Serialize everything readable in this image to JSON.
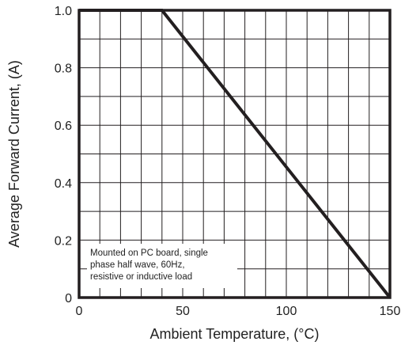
{
  "chart_data": {
    "type": "line",
    "title": "",
    "xlabel": "Ambient Temperature, (°C)",
    "ylabel": "Average Forward Current, (A)",
    "xlim": [
      0,
      150
    ],
    "ylim": [
      0,
      1.0
    ],
    "x_ticks": [
      0,
      50,
      100,
      150
    ],
    "x_tick_labels": [
      "0",
      "50",
      "100",
      "150"
    ],
    "y_ticks": [
      0,
      0.2,
      0.4,
      0.6,
      0.8,
      1.0
    ],
    "y_tick_labels": [
      "0",
      "0.2",
      "0.4",
      "0.6",
      "0.8",
      "1.0"
    ],
    "x_grid_step": 10,
    "y_grid_step": 0.1,
    "grid": true,
    "series": [
      {
        "x": [
          0,
          40,
          150
        ],
        "y": [
          1.0,
          1.0,
          0.0
        ],
        "color": "#231f20"
      }
    ],
    "annotation": {
      "lines": [
        "Mounted on PC board, single",
        "phase half wave, 60Hz,",
        "resistive or inductive load"
      ],
      "anchor": "bottom-left"
    }
  }
}
